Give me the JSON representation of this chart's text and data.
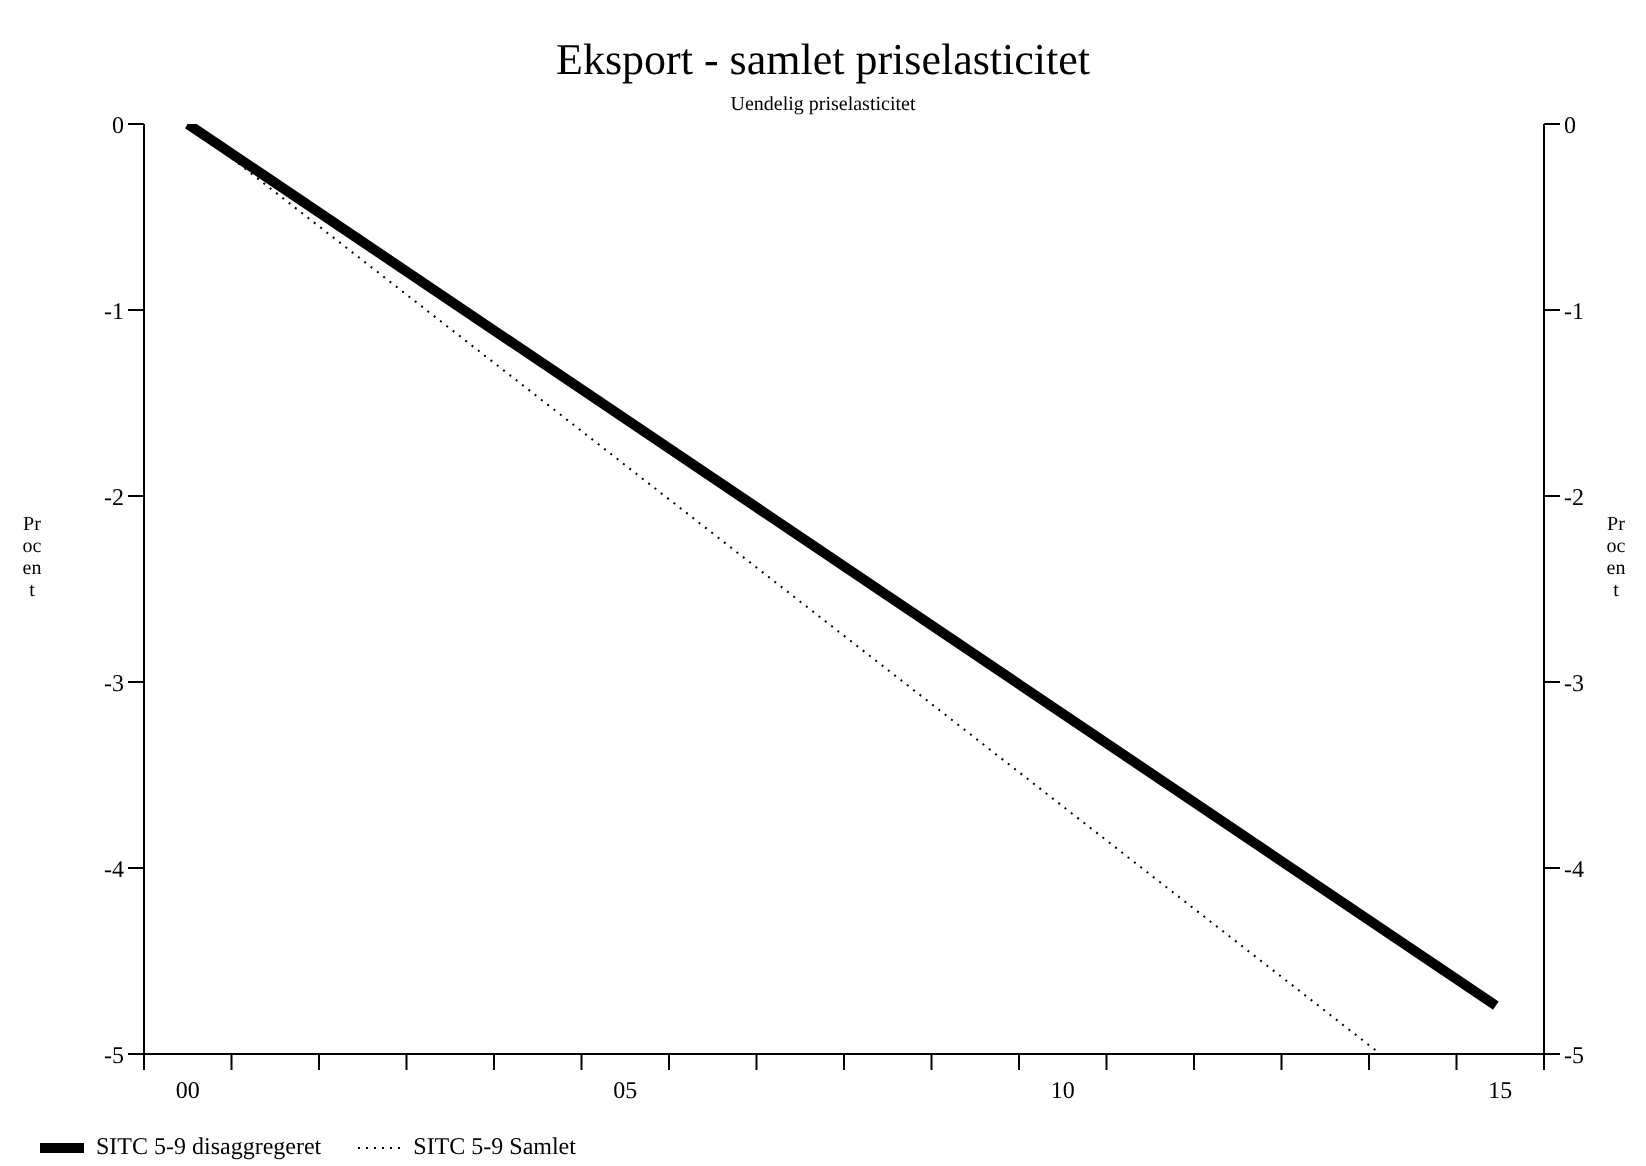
{
  "chart_data": {
    "type": "line",
    "title": "Eksport - samlet priselasticitet",
    "subtitle": "Uendelig priselasticitet",
    "ylabel": "Procent",
    "y2label": "Procent",
    "xlim": [
      -0.5,
      15.5
    ],
    "xticks": [
      {
        "value": -0.5,
        "label": null
      },
      {
        "value": 0,
        "label": "00"
      },
      {
        "value": 0.5,
        "label": null
      },
      {
        "value": 1.5,
        "label": null
      },
      {
        "value": 2.5,
        "label": null
      },
      {
        "value": 3.5,
        "label": null
      },
      {
        "value": 4.5,
        "label": null
      },
      {
        "value": 5,
        "label": "05"
      },
      {
        "value": 5.5,
        "label": null
      },
      {
        "value": 6.5,
        "label": null
      },
      {
        "value": 7.5,
        "label": null
      },
      {
        "value": 8.5,
        "label": null
      },
      {
        "value": 9.5,
        "label": null
      },
      {
        "value": 10,
        "label": "10"
      },
      {
        "value": 10.5,
        "label": null
      },
      {
        "value": 11.5,
        "label": null
      },
      {
        "value": 12.5,
        "label": null
      },
      {
        "value": 13.5,
        "label": null
      },
      {
        "value": 14.5,
        "label": null
      },
      {
        "value": 15,
        "label": "15"
      },
      {
        "value": 15.5,
        "label": null
      }
    ],
    "ylim": [
      -5,
      0
    ],
    "yticks": [
      -5,
      -4,
      -3,
      -2,
      -1,
      0
    ],
    "y2lim": [
      -5,
      0
    ],
    "y2ticks": [
      -5,
      -4,
      -3,
      -2,
      -1,
      0
    ],
    "grid": false,
    "legend": "bottom left",
    "marker": "none",
    "series": [
      {
        "name": "SITC 5-9 disaggregeret",
        "color": "#000000",
        "line_style": "solid",
        "x": [
          0,
          14.95
        ],
        "values": [
          0,
          -4.74
        ]
      },
      {
        "name": "SITC 5-9 Samlet",
        "color": "#000000",
        "line_style": "dotted",
        "x": [
          0,
          13.63
        ],
        "values": [
          0,
          -5
        ]
      }
    ]
  }
}
